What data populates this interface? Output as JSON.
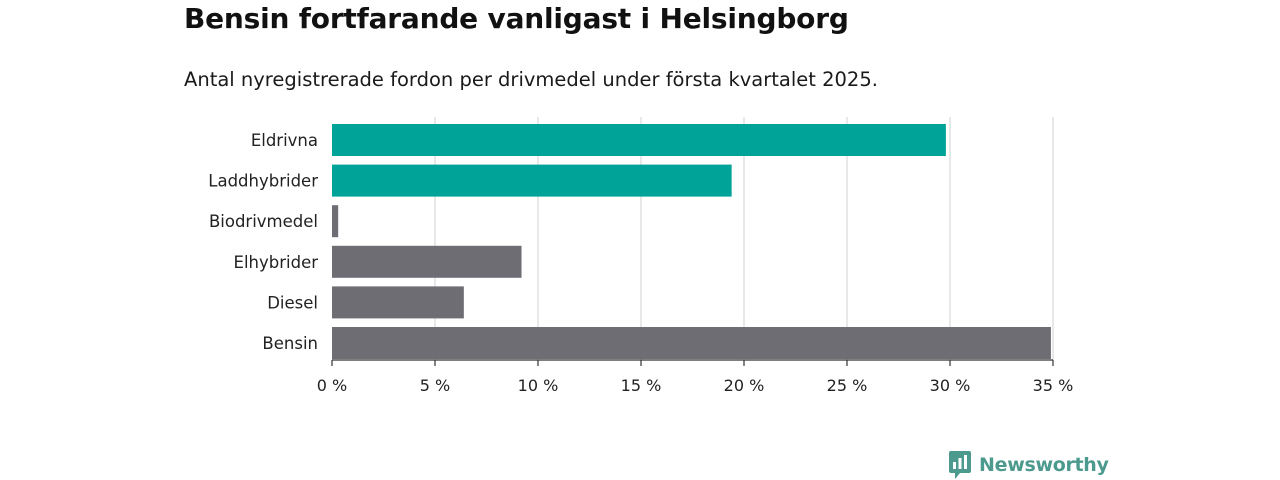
{
  "title": "Bensin fortfarande vanligast i Helsingborg",
  "subtitle": "Antal nyregistrerade fordon per drivmedel under första kvartalet 2025.",
  "brand": {
    "name": "Newsworthy",
    "icon": "newsworthy-logo-icon",
    "color": "#4c9a8e"
  },
  "chart_data": {
    "type": "bar",
    "orientation": "horizontal",
    "title": "Bensin fortfarande vanligast i Helsingborg",
    "subtitle": "Antal nyregistrerade fordon per drivmedel under första kvartalet 2025.",
    "xlabel": "",
    "ylabel": "",
    "categories": [
      "Eldrivna",
      "Laddhybrider",
      "Biodrivmedel",
      "Elhybrider",
      "Diesel",
      "Bensin"
    ],
    "values": [
      29.8,
      19.4,
      0.3,
      9.2,
      6.4,
      34.9
    ],
    "unit": "%",
    "highlight": [
      true,
      true,
      false,
      false,
      false,
      false
    ],
    "xlim": [
      0,
      35
    ],
    "ticks": [
      0,
      5,
      10,
      15,
      20,
      25,
      30,
      35
    ],
    "tick_labels": [
      "0 %",
      "5 %",
      "10 %",
      "15 %",
      "20 %",
      "25 %",
      "30 %",
      "35 %"
    ],
    "grid": "vertical",
    "colors": {
      "highlight": "#00a398",
      "default": "#6e6d74",
      "grid": "#d9d9d9",
      "axis": "#333333"
    }
  }
}
